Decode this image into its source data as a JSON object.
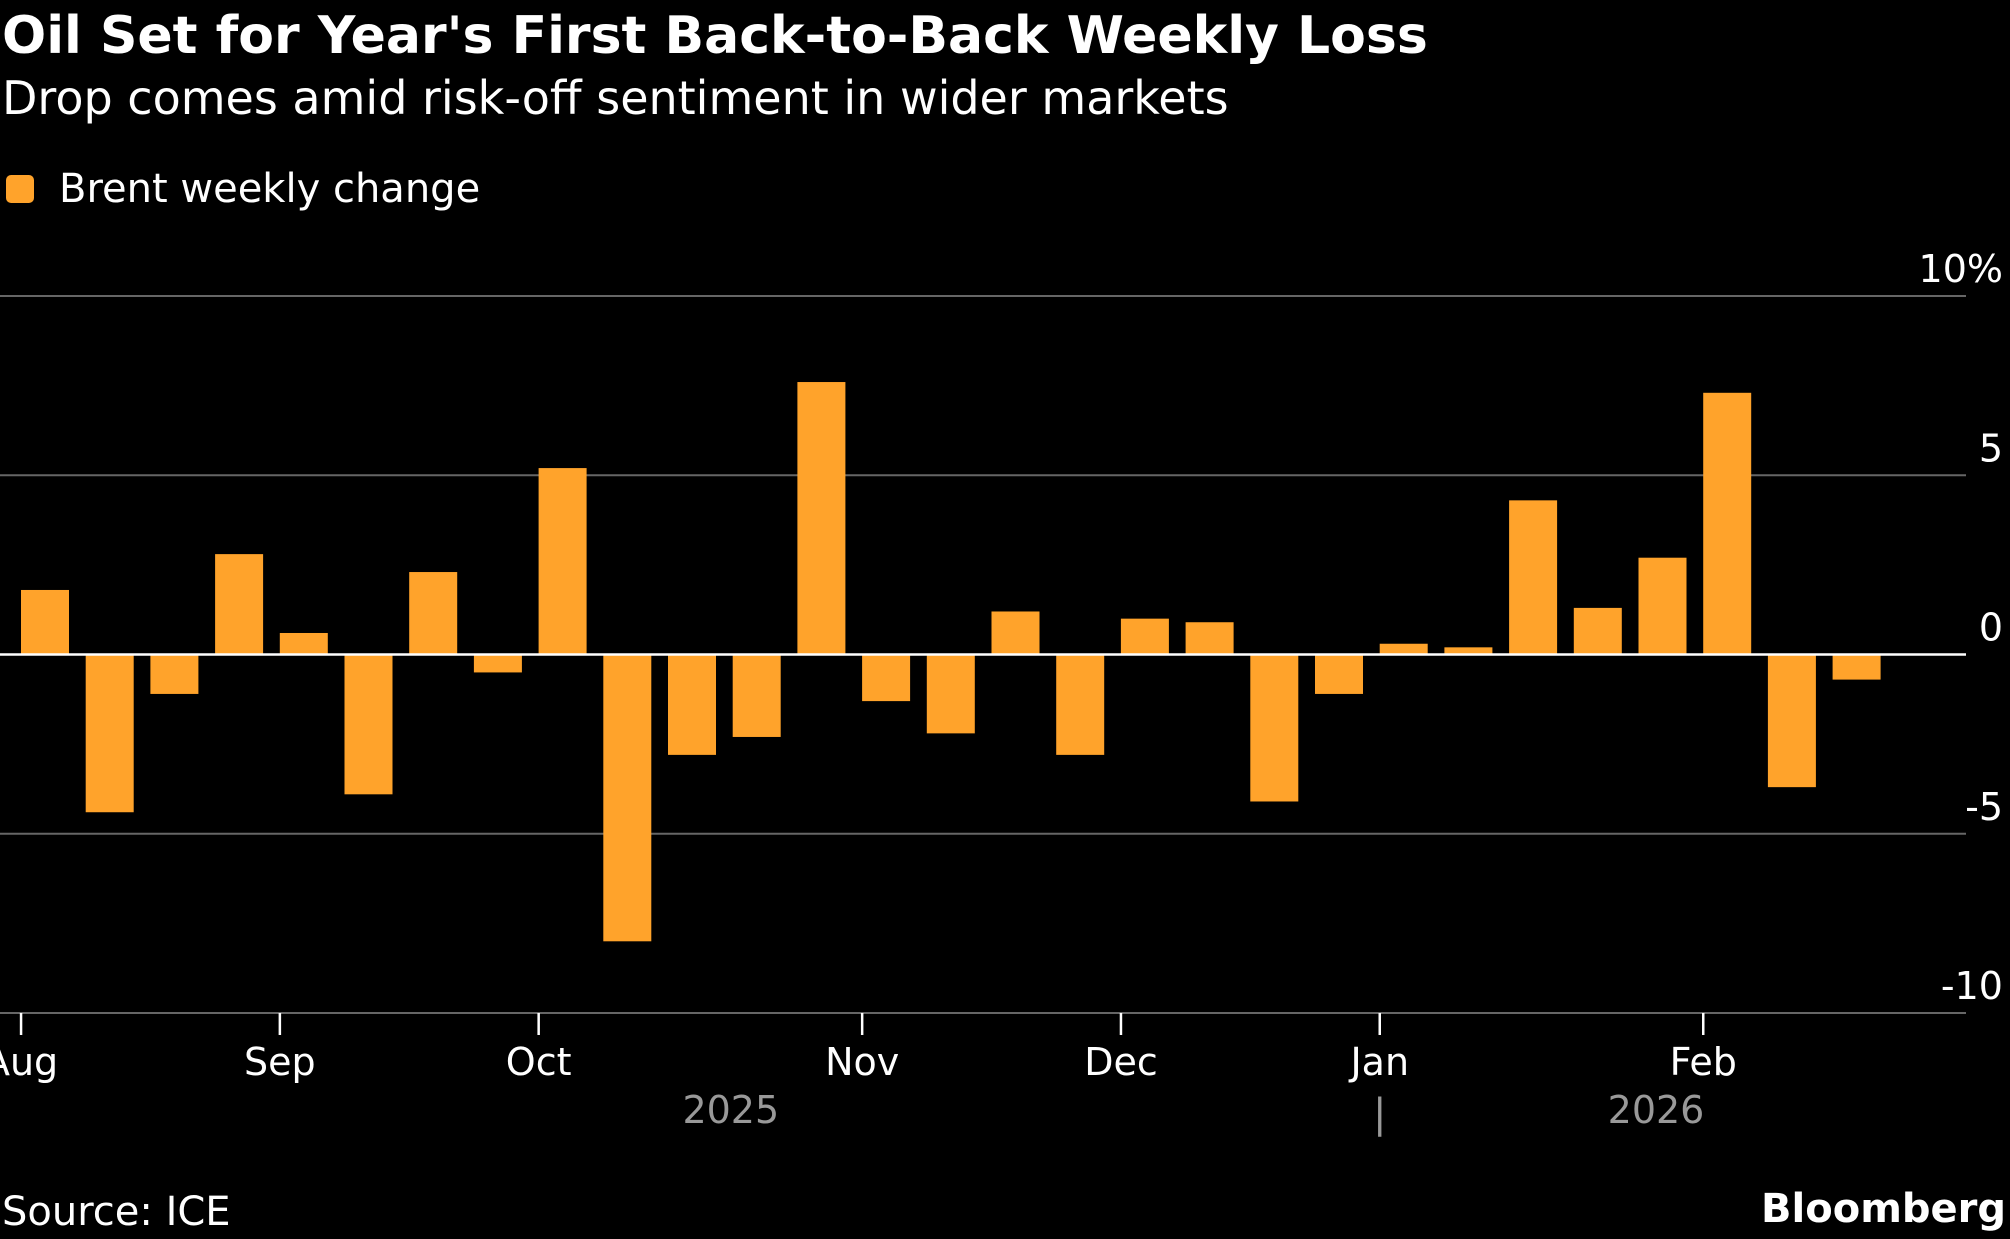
{
  "chart_data": {
    "type": "bar",
    "title": "Oil Set for Year's First Back-to-Back Weekly Loss",
    "subtitle": "Drop comes amid risk-off sentiment in wider markets",
    "legend": [
      {
        "label": "Brent weekly change",
        "color": "#ffa32b"
      }
    ],
    "series": [
      {
        "name": "Brent weekly change",
        "color": "#ffa32b",
        "values": [
          1.8,
          -4.4,
          -1.1,
          2.8,
          0.6,
          -3.9,
          2.3,
          -0.5,
          5.2,
          -8.0,
          -2.8,
          -2.3,
          7.6,
          -1.3,
          -2.2,
          1.2,
          -2.8,
          1.0,
          0.9,
          -4.1,
          -1.1,
          0.3,
          0.2,
          4.3,
          1.3,
          2.7,
          7.3,
          -3.7,
          -0.7
        ]
      }
    ],
    "ylim": [
      -10,
      10
    ],
    "yticks": [
      {
        "value": 10,
        "label": "10%"
      },
      {
        "value": 5,
        "label": "5"
      },
      {
        "value": 0,
        "label": "0"
      },
      {
        "value": -5,
        "label": "-5"
      },
      {
        "value": -10,
        "label": "-10"
      }
    ],
    "xticks": [
      {
        "label": "Aug",
        "week": -0.37
      },
      {
        "label": "Sep",
        "week": 3.63
      },
      {
        "label": "Oct",
        "week": 7.63
      },
      {
        "label": "Nov",
        "week": 12.63
      },
      {
        "label": "Dec",
        "week": 16.63
      },
      {
        "label": "Jan",
        "week": 20.63
      },
      {
        "label": "Feb",
        "week": 25.63
      }
    ],
    "year_labels": [
      {
        "label": "2025",
        "week": 10.6
      },
      {
        "label": "2026",
        "week": 24.9
      }
    ],
    "year_divider_week": 20.63,
    "year_divider_label": "|",
    "grid": true,
    "legend_position": "top-left",
    "xlabel": "",
    "ylabel": ""
  },
  "source": "Source: ICE",
  "brand": "Bloomberg",
  "colors": {
    "bar": "#ffa32b",
    "background": "#000000",
    "grid": "#666666",
    "zero_line": "#ffffff",
    "text": "#ffffff",
    "year_text": "#999999"
  }
}
